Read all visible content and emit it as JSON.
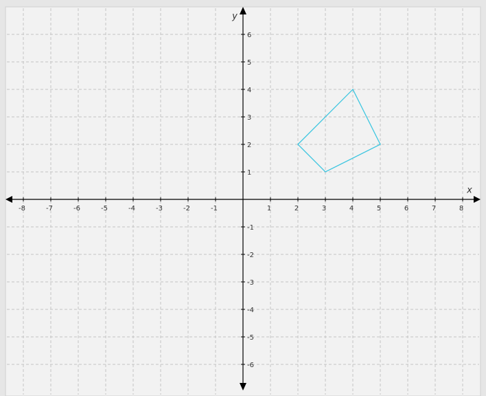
{
  "chart_data": {
    "type": "polygon",
    "x_label": "x",
    "y_label": "y",
    "x": [
      2,
      4,
      5,
      3
    ],
    "y": [
      2,
      4,
      2,
      1
    ],
    "color": "#3ec6e0",
    "xlim": [
      -8.6,
      8.6
    ],
    "ylim": [
      -6.9,
      6.9
    ],
    "xticks": [
      -8,
      -7,
      -6,
      -5,
      -4,
      -3,
      -2,
      -1,
      1,
      2,
      3,
      4,
      5,
      6,
      7,
      8
    ],
    "yticks": [
      -6,
      -5,
      -4,
      -3,
      -2,
      -1,
      1,
      2,
      3,
      4,
      5,
      6
    ],
    "grid": true
  }
}
